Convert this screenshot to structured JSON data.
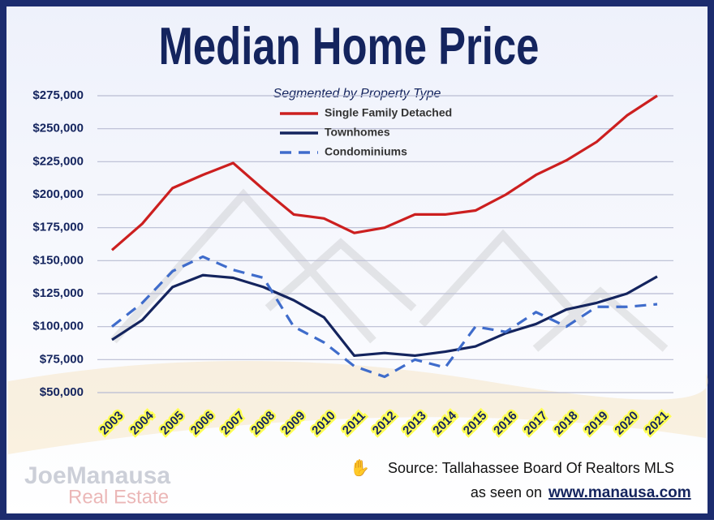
{
  "chart_data": {
    "type": "line",
    "title": "Median Home Price",
    "subtitle": "Segmented by Property Type",
    "categories": [
      "2003",
      "2004",
      "2005",
      "2006",
      "2007",
      "2008",
      "2009",
      "2010",
      "2011",
      "2012",
      "2013",
      "2014",
      "2015",
      "2016",
      "2017",
      "2018",
      "2019",
      "2020",
      "2021"
    ],
    "series": [
      {
        "name": "Single Family Detached",
        "color": "#cc1f1f",
        "dashed": false,
        "values": [
          158000,
          178000,
          205000,
          215000,
          224000,
          204000,
          185000,
          182000,
          171000,
          175000,
          185000,
          185000,
          188000,
          200000,
          215000,
          226000,
          240000,
          260000,
          275000
        ]
      },
      {
        "name": "Townhomes",
        "color": "#14245e",
        "dashed": false,
        "values": [
          90000,
          105000,
          130000,
          139000,
          137000,
          130000,
          120000,
          107000,
          78000,
          80000,
          78000,
          81000,
          85000,
          95000,
          102000,
          113000,
          118000,
          125000,
          138000
        ]
      },
      {
        "name": "Condominiums",
        "color": "#3f6ccb",
        "dashed": true,
        "values": [
          100000,
          118000,
          142000,
          153000,
          143000,
          137000,
          100000,
          88000,
          70000,
          62000,
          75000,
          69000,
          100000,
          96000,
          111000,
          100000,
          115000,
          115000,
          117000
        ]
      }
    ],
    "ylim": [
      50000,
      275000
    ],
    "yticks": [
      {
        "value": 50000,
        "label": "$50,000"
      },
      {
        "value": 75000,
        "label": "$75,000"
      },
      {
        "value": 100000,
        "label": "$100,000"
      },
      {
        "value": 125000,
        "label": "$125,000"
      },
      {
        "value": 150000,
        "label": "$150,000"
      },
      {
        "value": 175000,
        "label": "$175,000"
      },
      {
        "value": 200000,
        "label": "$200,000"
      },
      {
        "value": 225000,
        "label": "$225,000"
      },
      {
        "value": 250000,
        "label": "$250,000"
      },
      {
        "value": 275000,
        "label": "$275,000"
      }
    ],
    "grid": true,
    "source": "Source: Tallahassee Board Of Realtors MLS",
    "website_prefix": "as seen on",
    "website": "www.manausa.com",
    "logo_name": "JoeManausa",
    "logo_subtitle": "Real Estate"
  }
}
